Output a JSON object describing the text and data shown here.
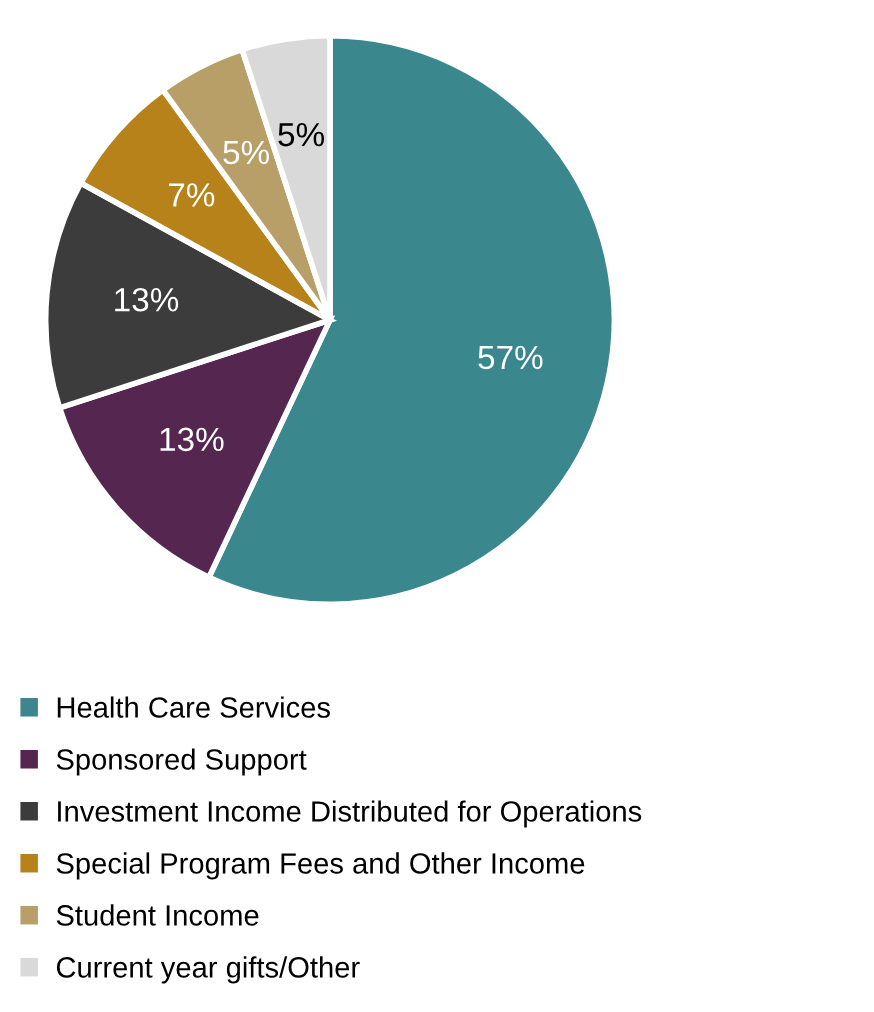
{
  "chart_data": {
    "type": "pie",
    "categories": [
      "Health Care Services",
      "Sponsored Support",
      "Investment Income Distributed for Operations",
      "Special Program Fees and Other Income",
      "Student Income",
      "Current year gifts/Other"
    ],
    "values": [
      57,
      13,
      13,
      7,
      5,
      5
    ],
    "colors": [
      "#3a878d",
      "#55264f",
      "#3c3c3c",
      "#b8821a",
      "#b89e67",
      "#d9d9d9"
    ],
    "value_labels": [
      "57%",
      "13%",
      "13%",
      "7%",
      "5%",
      "5%"
    ],
    "legend": "bottom"
  }
}
